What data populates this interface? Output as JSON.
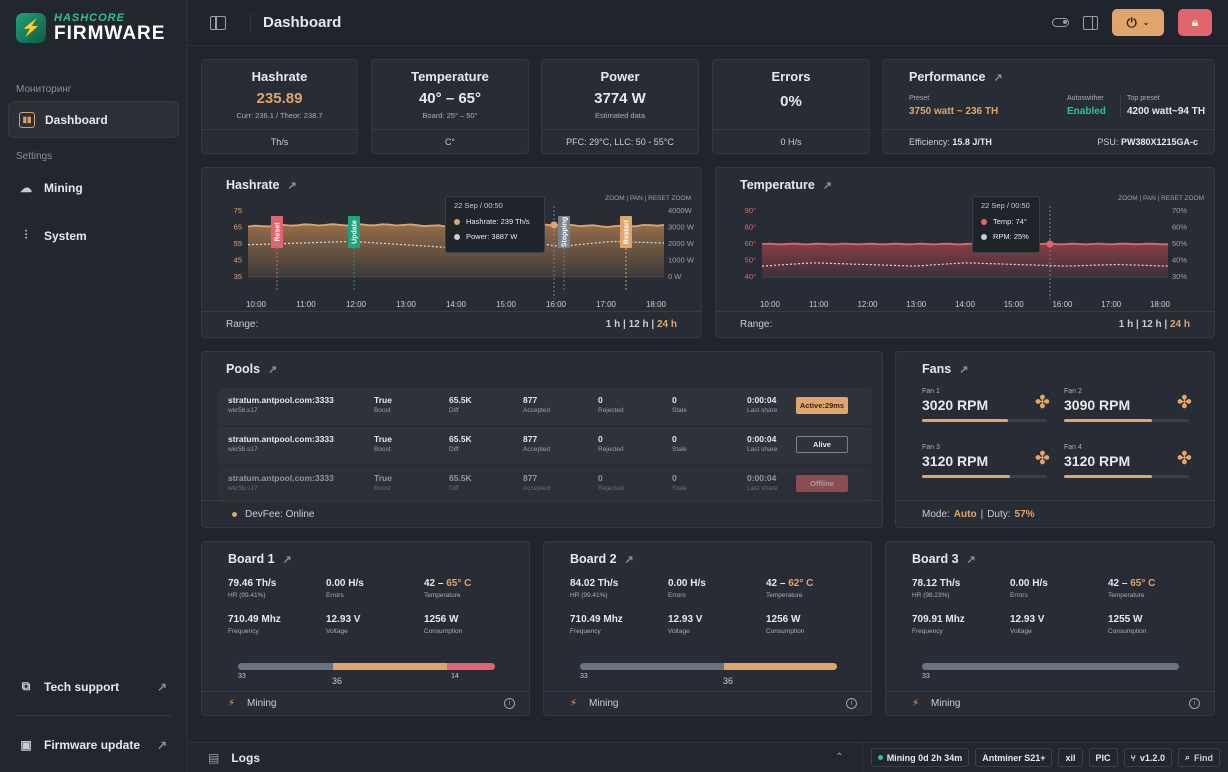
{
  "app": {
    "logo_top": "HASHCORE",
    "logo_bottom": "FIRMWARE"
  },
  "sidebar": {
    "section_monitoring": "Мониторинг",
    "section_settings": "Settings",
    "items": [
      {
        "label": "Dashboard"
      },
      {
        "label": "Mining"
      },
      {
        "label": "System"
      }
    ],
    "bottom": [
      {
        "label": "Tech support"
      },
      {
        "label": "Firmware update"
      }
    ]
  },
  "header": {
    "title": "Dashboard"
  },
  "stats": {
    "hashrate": {
      "title": "Hashrate",
      "value": "235.89",
      "sub": "Curr: 236.1 / Theor: 238.7",
      "unit": "Th/s"
    },
    "temperature": {
      "title": "Temperature",
      "value": "40° – 65°",
      "sub": "Board: 25° – 50°",
      "unit": "C°"
    },
    "power": {
      "title": "Power",
      "value": "3774 W",
      "sub": "Estimated data",
      "foot": "PFC: 29°C, LLC: 50 - 55°C"
    },
    "errors": {
      "title": "Errors",
      "value": "0%",
      "unit": "0 H/s"
    },
    "performance": {
      "title": "Performance",
      "preset_label": "Preset",
      "preset_value": "3750 watt ~ 236 TH",
      "autoswitcher_label": "Autoswither",
      "autoswitcher_value": "Enabled",
      "top_preset_label": "Top preset",
      "top_preset_value": "4200 watt~94 TH",
      "efficiency_label": "Efficiency:",
      "efficiency_value": "15.8 J/TH",
      "psu_label": "PSU:",
      "psu_value": "PW380X1215GA-c"
    }
  },
  "hashrate_chart": {
    "title": "Hashrate",
    "controls": "ZOOM | PAN | RESET ZOOM",
    "tooltip": {
      "date": "22 Sep / 00:50",
      "line1": "Hashrate: 239 Th/s",
      "line2": "Power: 3887 W"
    },
    "range_label": "Range:",
    "range_1h": "1 h",
    "range_12h": "12 h",
    "range_24h": "24 h",
    "events": [
      {
        "label": "Reset",
        "color": "#e1656e"
      },
      {
        "label": "Update",
        "color": "#1fa37a"
      },
      {
        "label": "Stopping",
        "color": "#7a8290"
      },
      {
        "label": "Restart",
        "color": "#e0a56c"
      }
    ]
  },
  "temperature_chart": {
    "title": "Temperature",
    "controls": "ZOOM | PAN | RESET ZOOM",
    "tooltip": {
      "date": "22 Sep / 00:50",
      "line1": "Temp: 74°",
      "line2": "RPM: 25%"
    },
    "range_label": "Range:",
    "range_1h": "1 h",
    "range_12h": "12 h",
    "range_24h": "24 h"
  },
  "chart_data": [
    {
      "type": "area",
      "title": "Hashrate",
      "x": [
        "10:00",
        "11:00",
        "12:00",
        "13:00",
        "14:00",
        "15:00",
        "16:00",
        "17:00",
        "18:00"
      ],
      "yticks_left": [
        75,
        65,
        55,
        45,
        35
      ],
      "yticks_right": [
        "4000W",
        "3000 W",
        "2000 W",
        "1000 W",
        "0 W"
      ],
      "series": [
        {
          "name": "Hashrate",
          "values": [
            65,
            66,
            66,
            66,
            65,
            66,
            66,
            65,
            66
          ]
        },
        {
          "name": "Power",
          "values": [
            57,
            58,
            59,
            57,
            55,
            60,
            56,
            59,
            58
          ]
        }
      ]
    },
    {
      "type": "area",
      "title": "Temperature",
      "x": [
        "10:00",
        "11:00",
        "12:00",
        "13:00",
        "14:00",
        "15:00",
        "16:00",
        "17:00",
        "18:00"
      ],
      "yticks_left": [
        "90°",
        "80°",
        "60°",
        "50°",
        "40°"
      ],
      "yticks_right": [
        "70%",
        "60%",
        "50%",
        "40%",
        "30%"
      ],
      "series": [
        {
          "name": "Temp",
          "values": [
            80,
            80,
            80,
            80,
            80,
            80,
            80,
            80,
            80
          ]
        },
        {
          "name": "RPM",
          "values": [
            56,
            58,
            57,
            56,
            58,
            57,
            56,
            57,
            56
          ]
        }
      ]
    }
  ],
  "pools": {
    "title": "Pools",
    "col_labels": {
      "boost": "Boost",
      "diff": "Diff",
      "accepted": "Accepted",
      "rejected": "Rejected",
      "stale": "Stale",
      "last_share": "Last share"
    },
    "rows": [
      {
        "url": "stratum.antpool.com:3333",
        "worker": "wkr5b.s17",
        "boost": "True",
        "diff": "65.5K",
        "accepted": "877",
        "rejected": "0",
        "stale": "0",
        "last_share": "0:00:04",
        "status": "Active:29ms"
      },
      {
        "url": "stratum.antpool.com:3333",
        "worker": "wkr5b.s17",
        "boost": "True",
        "diff": "65.5K",
        "accepted": "877",
        "rejected": "0",
        "stale": "0",
        "last_share": "0:00:04",
        "status": "Alive"
      },
      {
        "url": "stratum.antpool.com:3333",
        "worker": "wkr5b.s17",
        "boost": "True",
        "diff": "65.5K",
        "accepted": "877",
        "rejected": "0",
        "stale": "0",
        "last_share": "0:00:04",
        "status": "Offline"
      }
    ],
    "devfee": "DevFee: Online"
  },
  "fans": {
    "title": "Fans",
    "items": [
      {
        "label": "Fan 1",
        "value": "3020 RPM",
        "level": 0.69
      },
      {
        "label": "Fan 2",
        "value": "3090 RPM",
        "level": 0.7
      },
      {
        "label": "Fan 3",
        "value": "3120 RPM",
        "level": 0.7
      },
      {
        "label": "Fan 4",
        "value": "3120 RPM",
        "level": 0.7
      }
    ],
    "mode_label": "Mode:",
    "mode_value": "Auto",
    "duty_label": "Duty:",
    "duty_value": "57%"
  },
  "boards": [
    {
      "title": "Board 1",
      "hr": "79.46 Th/s",
      "hr_label": "HR (99.41%)",
      "errors": "0.00 H/s",
      "errors_label": "Errors",
      "temp_low": "42 –",
      "temp_high": "65° C",
      "temp_label": "Temperature",
      "freq": "710.49 Mhz",
      "freq_label": "Frequency",
      "volt": "12.93 V",
      "volt_label": "Voltage",
      "cons": "1256 W",
      "cons_label": "Consumption",
      "bar": [
        33,
        36,
        14
      ],
      "status": "Mining"
    },
    {
      "title": "Board 2",
      "hr": "84.02 Th/s",
      "hr_label": "HR (99.41%)",
      "errors": "0.00 H/s",
      "errors_label": "Errors",
      "temp_low": "42 –",
      "temp_high": "62° C",
      "temp_label": "Temperature",
      "freq": "710.49 Mhz",
      "freq_label": "Frequency",
      "volt": "12.93 V",
      "volt_label": "Voltage",
      "cons": "1256 W",
      "cons_label": "Consumption",
      "bar": [
        33,
        36
      ],
      "status": "Mining"
    },
    {
      "title": "Board 3",
      "hr": "78.12 Th/s",
      "hr_label": "HR (98.23%)",
      "errors": "0.00 H/s",
      "errors_label": "Errors",
      "temp_low": "42 –",
      "temp_high": "65° C",
      "temp_label": "Temperature",
      "freq": "709.91 Mhz",
      "freq_label": "Frequency",
      "volt": "12.93 V",
      "volt_label": "Voltage",
      "cons": "1255 W",
      "cons_label": "Consumption",
      "bar": [
        33
      ],
      "status": "Mining"
    }
  ],
  "logs": {
    "title": "Logs",
    "uptime": "Mining 0d 2h 34m",
    "model": "Antminer S21+",
    "xil": "xil",
    "pic": "PIC",
    "version": "v1.2.0",
    "find": "Find"
  },
  "colors": {
    "accent": "#e0a56c",
    "green": "#2ec28f",
    "red": "#e1656e",
    "bg": "#20242c",
    "card": "#282d35"
  }
}
